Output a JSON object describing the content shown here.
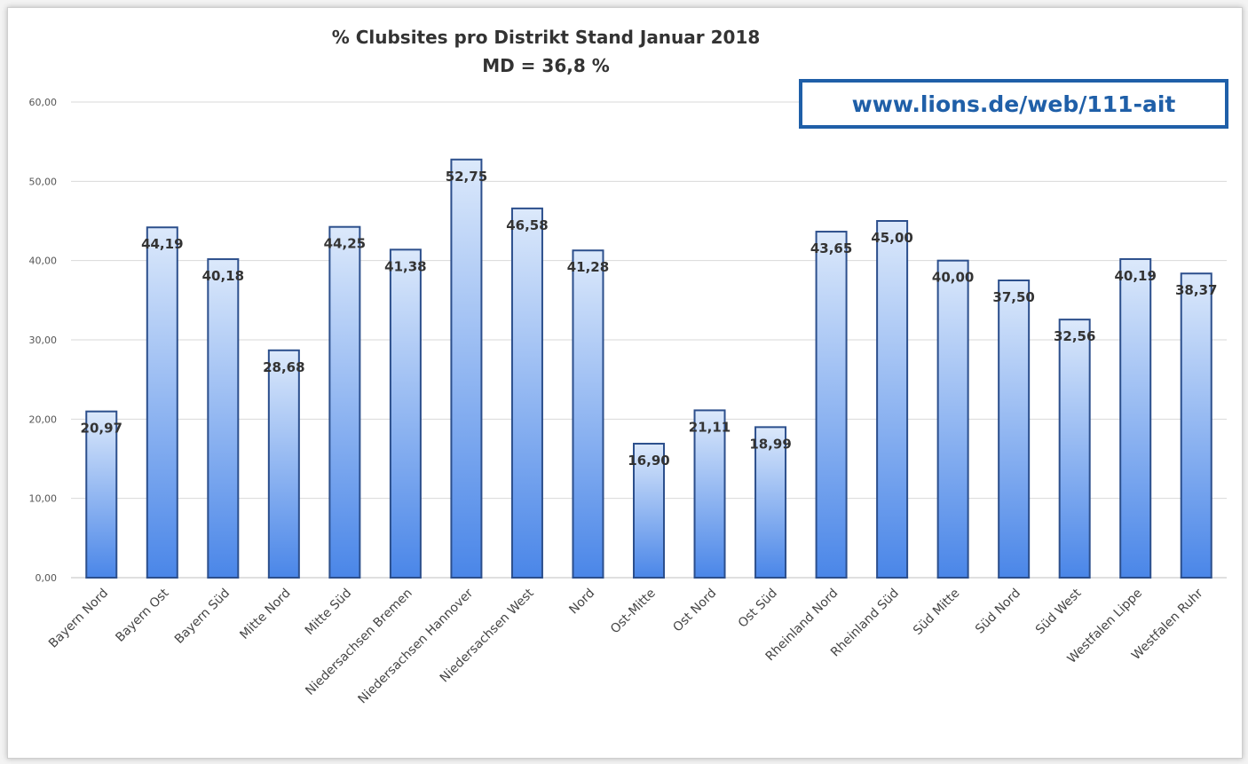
{
  "chart_data": {
    "type": "bar",
    "title": "% Clubsites pro Distrikt  Stand Januar 2018",
    "subtitle": "MD = 36,8 %",
    "xlabel": "",
    "ylabel": "",
    "ylim": [
      0,
      60
    ],
    "yticks": [
      "0,00",
      "10,00",
      "20,00",
      "30,00",
      "40,00",
      "50,00",
      "60,00"
    ],
    "grid": true,
    "categories": [
      "Bayern Nord",
      "Bayern Ost",
      "Bayern Süd",
      "Mitte Nord",
      "Mitte Süd",
      "Niedersachsen Bremen",
      "Niedersachsen Hannover",
      "Niedersachsen West",
      "Nord",
      "Ost-Mitte",
      "Ost Nord",
      "Ost Süd",
      "Rheinland Nord",
      "Rheinland Süd",
      "Süd Mitte",
      "Süd Nord",
      "Süd West",
      "Westfalen Lippe",
      "Westfalen Ruhr"
    ],
    "values": [
      20.97,
      44.19,
      40.18,
      28.68,
      44.25,
      41.38,
      52.75,
      46.58,
      41.28,
      16.9,
      21.11,
      18.99,
      43.65,
      45.0,
      40.0,
      37.5,
      32.56,
      40.19,
      38.37
    ],
    "labels": [
      "20,97",
      "44,19",
      "40,18",
      "28,68",
      "44,25",
      "41,38",
      "52,75",
      "46,58",
      "41,28",
      "16,90",
      "21,11",
      "18,99",
      "43,65",
      "45,00",
      "40,00",
      "37,50",
      "32,56",
      "40,19",
      "38,37"
    ],
    "colors": {
      "bar_top": "#dce9fb",
      "bar_bottom": "#4a86e8",
      "bar_stroke": "#2c4f8c",
      "grid": "#d9d9d9",
      "link": "#1f5fa8"
    }
  },
  "annotation": {
    "url": "www.lions.de/web/111-ait"
  }
}
